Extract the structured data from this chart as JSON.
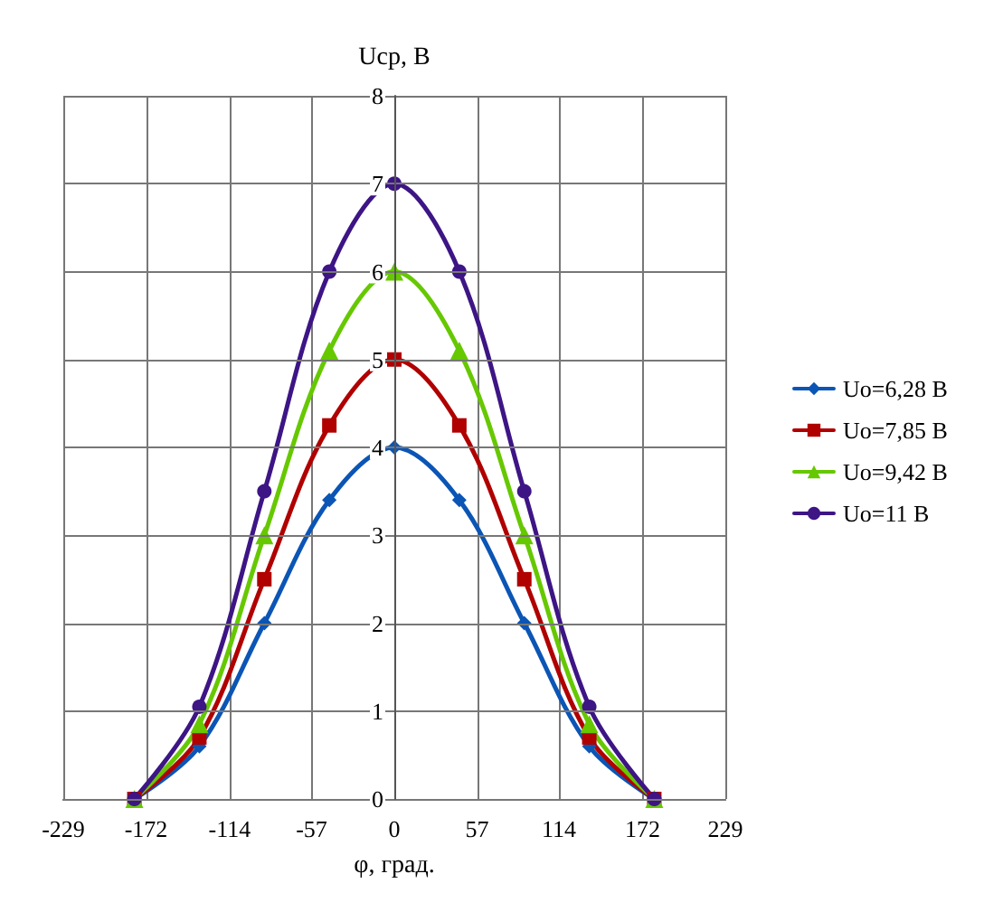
{
  "chart_data": {
    "type": "line",
    "xlabel": "φ, град.",
    "ylabel": "Uср, В",
    "x": [
      -180,
      -135,
      -90,
      -45,
      0,
      45,
      90,
      135,
      180
    ],
    "series": [
      {
        "name": "Uo=6,28 В",
        "color": "#0b55b5",
        "marker": "diamond",
        "values": [
          0,
          0.6,
          2,
          3.4,
          4,
          3.4,
          2,
          0.6,
          0
        ]
      },
      {
        "name": "Uo=7,85 В",
        "color": "#b00000",
        "marker": "square",
        "values": [
          0,
          0.7,
          2.5,
          4.25,
          5,
          4.25,
          2.5,
          0.7,
          0
        ]
      },
      {
        "name": "Uo=9,42 В",
        "color": "#66c800",
        "marker": "triangle",
        "values": [
          0,
          0.85,
          3,
          5.1,
          6,
          5.1,
          3,
          0.85,
          0
        ]
      },
      {
        "name": "Uo=11 В",
        "color": "#3d1585",
        "marker": "circle",
        "values": [
          0,
          1.05,
          3.5,
          6,
          7,
          6,
          3.5,
          1.05,
          0
        ]
      }
    ],
    "xlim": [
      -229.2,
      229.2
    ],
    "xticks": [
      {
        "value": -229.2,
        "label": "-229"
      },
      {
        "value": -171.9,
        "label": "-172"
      },
      -114,
      {
        "value": -57.3,
        "label": "-57"
      },
      0,
      {
        "value": 57.3,
        "label": "57"
      },
      114,
      {
        "value": 171.9,
        "label": "172"
      },
      {
        "value": 229.2,
        "label": "229"
      }
    ],
    "ylim": [
      0,
      8
    ],
    "yticks": [
      0,
      1,
      2,
      3,
      4,
      5,
      6,
      7,
      8
    ],
    "grid": true,
    "legend": "right",
    "line_style": "solid"
  }
}
